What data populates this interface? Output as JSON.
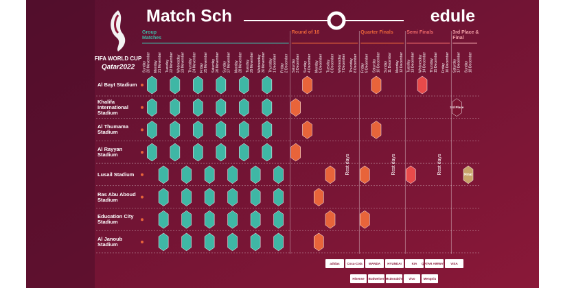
{
  "header": {
    "title_left": "Match Sch",
    "title_right": "edule",
    "logo_line1": "FIFA WORLD CUP",
    "logo_line2": "Qatar2022"
  },
  "stages": [
    "Group Matches",
    "Round of 16",
    "Quarter Finals",
    "Semi Finals",
    "3rd Place & Final"
  ],
  "dates": [
    {
      "weekday": "Sunday",
      "date": "20 November"
    },
    {
      "weekday": "Monday",
      "date": "21 November"
    },
    {
      "weekday": "Tuesday",
      "date": "22 November"
    },
    {
      "weekday": "Wednesday",
      "date": "23 November"
    },
    {
      "weekday": "Thursday",
      "date": "24 November"
    },
    {
      "weekday": "Friday",
      "date": "25 November"
    },
    {
      "weekday": "Saturday",
      "date": "26 November"
    },
    {
      "weekday": "Sunday",
      "date": "27 November"
    },
    {
      "weekday": "Monday",
      "date": "28 November"
    },
    {
      "weekday": "Tuesday",
      "date": "29 November"
    },
    {
      "weekday": "Wednesday",
      "date": "30 November"
    },
    {
      "weekday": "Thursday",
      "date": "1 December"
    },
    {
      "weekday": "Friday",
      "date": "2 December"
    },
    {
      "weekday": "Saturday",
      "date": "3 December"
    },
    {
      "weekday": "Sunday",
      "date": "4 December"
    },
    {
      "weekday": "Monday",
      "date": "5 December"
    },
    {
      "weekday": "Tuesday",
      "date": "6 December"
    },
    {
      "weekday": "Wednesday",
      "date": "7 December"
    },
    {
      "weekday": "Thursday",
      "date": "8 December"
    },
    {
      "weekday": "Friday",
      "date": "9 December"
    },
    {
      "weekday": "Saturday",
      "date": "10 December"
    },
    {
      "weekday": "Sunday",
      "date": "11 December"
    },
    {
      "weekday": "Monday",
      "date": "12 December"
    },
    {
      "weekday": "Tuesday",
      "date": "13 December"
    },
    {
      "weekday": "Wednesday",
      "date": "14 December"
    },
    {
      "weekday": "Thursday",
      "date": "15 December"
    },
    {
      "weekday": "Friday",
      "date": "16 December"
    },
    {
      "weekday": "Saturday",
      "date": "17 December"
    },
    {
      "weekday": "Sunday",
      "date": "18 December"
    }
  ],
  "stadiums": [
    "Al Bayt Stadium",
    "Khalifa International Stadium",
    "Al Thumama Stadium",
    "Al Rayyan Stadium",
    "Lusail Stadium",
    "Ras Abu Aboud Stadium",
    "Education City Stadium",
    "Al Janoub Stadium"
  ],
  "rest_days": [
    "Rest days",
    "Rest days",
    "Rest days"
  ],
  "knockout": {
    "third": "3rd Place",
    "final": "Final"
  },
  "sponsors": [
    "adidas",
    "Coca-Cola",
    "WANDA",
    "HYUNDAI",
    "KIA",
    "QATAR AIRWAYS",
    "VISA",
    "Hisense",
    "Budweiser",
    "McDonald's",
    "vivo",
    "Mengniu"
  ]
}
